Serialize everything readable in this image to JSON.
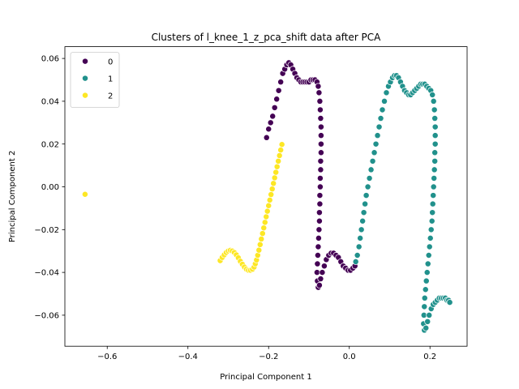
{
  "chart_data": {
    "type": "scatter",
    "title": "Clusters of l_knee_1_z_pca_shift data after PCA",
    "xlabel": "Principal Component 1",
    "ylabel": "Principal Component 2",
    "xlim": [
      -0.705,
      0.292
    ],
    "ylim": [
      -0.0745,
      0.0655
    ],
    "xticks": [
      -0.6,
      -0.4,
      -0.2,
      0.0,
      0.2
    ],
    "xtick_labels": [
      "−0.6",
      "−0.4",
      "−0.2",
      "0.0",
      "0.2"
    ],
    "yticks": [
      -0.06,
      -0.04,
      -0.02,
      0.0,
      0.02,
      0.04,
      0.06
    ],
    "ytick_labels": [
      "−0.06",
      "−0.04",
      "−0.02",
      "0.00",
      "0.02",
      "0.04",
      "0.06"
    ],
    "grid": false,
    "legend_position": "top-left",
    "series": [
      {
        "name": "0",
        "color": "#440154",
        "points": [
          [
            -0.205,
            0.023
          ],
          [
            -0.2,
            0.027
          ],
          [
            -0.195,
            0.03
          ],
          [
            -0.19,
            0.033
          ],
          [
            -0.185,
            0.037
          ],
          [
            -0.18,
            0.041
          ],
          [
            -0.175,
            0.045
          ],
          [
            -0.17,
            0.049
          ],
          [
            -0.165,
            0.053
          ],
          [
            -0.16,
            0.055
          ],
          [
            -0.155,
            0.057
          ],
          [
            -0.15,
            0.058
          ],
          [
            -0.145,
            0.057
          ],
          [
            -0.14,
            0.055
          ],
          [
            -0.135,
            0.053
          ],
          [
            -0.13,
            0.051
          ],
          [
            -0.125,
            0.05
          ],
          [
            -0.12,
            0.049
          ],
          [
            -0.115,
            0.049
          ],
          [
            -0.11,
            0.049
          ],
          [
            -0.105,
            0.049
          ],
          [
            -0.1,
            0.049
          ],
          [
            -0.095,
            0.05
          ],
          [
            -0.09,
            0.05
          ],
          [
            -0.085,
            0.05
          ],
          [
            -0.08,
            0.049
          ],
          [
            -0.077,
            0.047
          ],
          [
            -0.075,
            0.044
          ],
          [
            -0.073,
            0.04
          ],
          [
            -0.072,
            0.036
          ],
          [
            -0.071,
            0.032
          ],
          [
            -0.07,
            0.028
          ],
          [
            -0.07,
            0.024
          ],
          [
            -0.07,
            0.02
          ],
          [
            -0.07,
            0.016
          ],
          [
            -0.071,
            0.012
          ],
          [
            -0.071,
            0.008
          ],
          [
            -0.072,
            0.004
          ],
          [
            -0.072,
            0.0
          ],
          [
            -0.073,
            -0.004
          ],
          [
            -0.073,
            -0.008
          ],
          [
            -0.074,
            -0.012
          ],
          [
            -0.074,
            -0.016
          ],
          [
            -0.075,
            -0.02
          ],
          [
            -0.076,
            -0.024
          ],
          [
            -0.077,
            -0.028
          ],
          [
            -0.078,
            -0.032
          ],
          [
            -0.079,
            -0.036
          ],
          [
            -0.08,
            -0.04
          ],
          [
            -0.079,
            -0.044
          ],
          [
            -0.077,
            -0.047
          ],
          [
            -0.074,
            -0.046
          ],
          [
            -0.071,
            -0.043
          ],
          [
            -0.067,
            -0.04
          ],
          [
            -0.062,
            -0.037
          ],
          [
            -0.057,
            -0.034
          ],
          [
            -0.051,
            -0.032
          ],
          [
            -0.045,
            -0.031
          ],
          [
            -0.039,
            -0.031
          ],
          [
            -0.033,
            -0.032
          ],
          [
            -0.027,
            -0.033
          ],
          [
            -0.021,
            -0.035
          ],
          [
            -0.015,
            -0.037
          ],
          [
            -0.009,
            -0.038
          ],
          [
            -0.003,
            -0.039
          ],
          [
            0.003,
            -0.039
          ],
          [
            0.009,
            -0.038
          ],
          [
            0.014,
            -0.037
          ]
        ]
      },
      {
        "name": "1",
        "color": "#21918c",
        "points": [
          [
            0.016,
            -0.035
          ],
          [
            0.02,
            -0.032
          ],
          [
            0.024,
            -0.028
          ],
          [
            0.027,
            -0.024
          ],
          [
            0.03,
            -0.02
          ],
          [
            0.033,
            -0.016
          ],
          [
            0.036,
            -0.012
          ],
          [
            0.039,
            -0.008
          ],
          [
            0.042,
            -0.004
          ],
          [
            0.046,
            0.0
          ],
          [
            0.05,
            0.004
          ],
          [
            0.054,
            0.008
          ],
          [
            0.058,
            0.012
          ],
          [
            0.062,
            0.016
          ],
          [
            0.066,
            0.02
          ],
          [
            0.07,
            0.024
          ],
          [
            0.074,
            0.028
          ],
          [
            0.078,
            0.032
          ],
          [
            0.082,
            0.036
          ],
          [
            0.087,
            0.04
          ],
          [
            0.092,
            0.044
          ],
          [
            0.097,
            0.047
          ],
          [
            0.102,
            0.049
          ],
          [
            0.107,
            0.051
          ],
          [
            0.112,
            0.052
          ],
          [
            0.117,
            0.052
          ],
          [
            0.122,
            0.051
          ],
          [
            0.127,
            0.049
          ],
          [
            0.132,
            0.047
          ],
          [
            0.137,
            0.045
          ],
          [
            0.142,
            0.044
          ],
          [
            0.147,
            0.043
          ],
          [
            0.152,
            0.043
          ],
          [
            0.157,
            0.044
          ],
          [
            0.162,
            0.045
          ],
          [
            0.167,
            0.046
          ],
          [
            0.172,
            0.047
          ],
          [
            0.177,
            0.048
          ],
          [
            0.182,
            0.048
          ],
          [
            0.187,
            0.048
          ],
          [
            0.192,
            0.047
          ],
          [
            0.197,
            0.046
          ],
          [
            0.202,
            0.045
          ],
          [
            0.206,
            0.043
          ],
          [
            0.209,
            0.04
          ],
          [
            0.211,
            0.036
          ],
          [
            0.212,
            0.032
          ],
          [
            0.213,
            0.028
          ],
          [
            0.213,
            0.024
          ],
          [
            0.213,
            0.02
          ],
          [
            0.212,
            0.016
          ],
          [
            0.212,
            0.012
          ],
          [
            0.211,
            0.008
          ],
          [
            0.21,
            0.004
          ],
          [
            0.209,
            0.0
          ],
          [
            0.208,
            -0.004
          ],
          [
            0.207,
            -0.008
          ],
          [
            0.206,
            -0.012
          ],
          [
            0.205,
            -0.016
          ],
          [
            0.203,
            -0.02
          ],
          [
            0.201,
            -0.024
          ],
          [
            0.199,
            -0.028
          ],
          [
            0.197,
            -0.032
          ],
          [
            0.195,
            -0.036
          ],
          [
            0.193,
            -0.04
          ],
          [
            0.191,
            -0.044
          ],
          [
            0.189,
            -0.048
          ],
          [
            0.187,
            -0.052
          ],
          [
            0.186,
            -0.056
          ],
          [
            0.185,
            -0.06
          ],
          [
            0.184,
            -0.064
          ],
          [
            0.186,
            -0.067
          ],
          [
            0.19,
            -0.066
          ],
          [
            0.194,
            -0.063
          ],
          [
            0.198,
            -0.06
          ],
          [
            0.203,
            -0.057
          ],
          [
            0.208,
            -0.055
          ],
          [
            0.213,
            -0.054
          ],
          [
            0.218,
            -0.053
          ],
          [
            0.223,
            -0.052
          ],
          [
            0.228,
            -0.052
          ],
          [
            0.233,
            -0.052
          ],
          [
            0.238,
            -0.052
          ],
          [
            0.242,
            -0.053
          ],
          [
            0.246,
            -0.053
          ],
          [
            0.249,
            -0.054
          ]
        ]
      },
      {
        "name": "2",
        "color": "#fde725",
        "points": [
          [
            -0.655,
            -0.0035
          ],
          [
            -0.32,
            -0.0345
          ],
          [
            -0.315,
            -0.033
          ],
          [
            -0.31,
            -0.0318
          ],
          [
            -0.305,
            -0.0307
          ],
          [
            -0.3,
            -0.03
          ],
          [
            -0.295,
            -0.0297
          ],
          [
            -0.29,
            -0.03
          ],
          [
            -0.285,
            -0.0307
          ],
          [
            -0.28,
            -0.0318
          ],
          [
            -0.275,
            -0.0332
          ],
          [
            -0.27,
            -0.0348
          ],
          [
            -0.265,
            -0.0362
          ],
          [
            -0.26,
            -0.0375
          ],
          [
            -0.255,
            -0.0385
          ],
          [
            -0.25,
            -0.039
          ],
          [
            -0.245,
            -0.039
          ],
          [
            -0.24,
            -0.0385
          ],
          [
            -0.236,
            -0.0375
          ],
          [
            -0.233,
            -0.036
          ],
          [
            -0.23,
            -0.0342
          ],
          [
            -0.227,
            -0.032
          ],
          [
            -0.224,
            -0.0296
          ],
          [
            -0.221,
            -0.027
          ],
          [
            -0.218,
            -0.0244
          ],
          [
            -0.215,
            -0.0218
          ],
          [
            -0.212,
            -0.0192
          ],
          [
            -0.209,
            -0.0166
          ],
          [
            -0.206,
            -0.014
          ],
          [
            -0.203,
            -0.0114
          ],
          [
            -0.2,
            -0.0088
          ],
          [
            -0.197,
            -0.0062
          ],
          [
            -0.194,
            -0.0036
          ],
          [
            -0.191,
            -0.001
          ],
          [
            -0.188,
            0.0016
          ],
          [
            -0.185,
            0.0042
          ],
          [
            -0.182,
            0.0068
          ],
          [
            -0.179,
            0.0094
          ],
          [
            -0.176,
            0.012
          ],
          [
            -0.173,
            0.0146
          ],
          [
            -0.17,
            0.0172
          ],
          [
            -0.167,
            0.0198
          ]
        ]
      }
    ]
  }
}
